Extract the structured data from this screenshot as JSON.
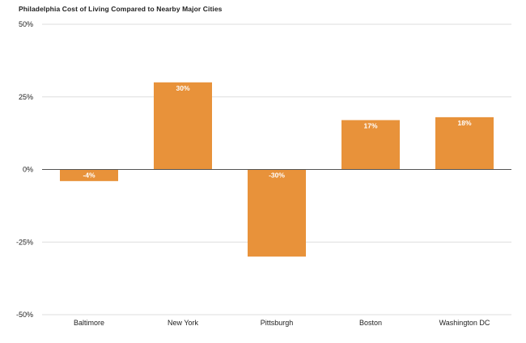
{
  "chart_data": {
    "type": "bar",
    "title": "Philadelphia Cost of Living Compared to Nearby Major Cities",
    "xlabel": "",
    "ylabel": "",
    "categories": [
      "Baltimore",
      "New York",
      "Pittsburgh",
      "Boston",
      "Washington DC"
    ],
    "values": [
      -4,
      30,
      -30,
      17,
      18
    ],
    "data_labels": [
      "-4%",
      "30%",
      "-30%",
      "17%",
      "18%"
    ],
    "ylim": [
      -50,
      50
    ],
    "yticks": [
      50,
      25,
      0,
      -25,
      -50
    ],
    "ytick_labels": [
      "50%",
      "25%",
      "0%",
      "-25%",
      "-50%"
    ],
    "grid": true,
    "legend": "none",
    "colors": {
      "bar": "#E8923A",
      "bar_label": "#ffffff",
      "grid": "#dddddd",
      "zero_line": "#555555",
      "text": "#222222"
    }
  }
}
